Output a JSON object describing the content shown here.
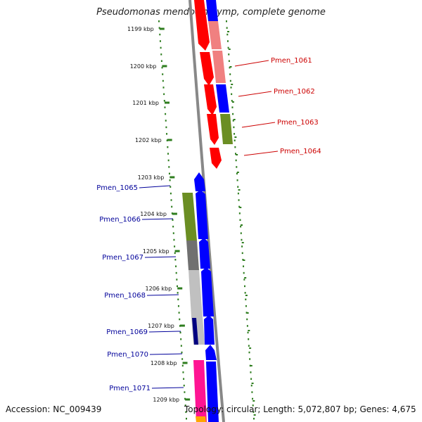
{
  "title": "Pseudomonas mendocina ymp, complete genome",
  "footer": {
    "accession": "Accession: NC_009439",
    "topology": "Topology: circular; Length: 5,072,807 bp; Genes: 4,675"
  },
  "colors": {
    "background": "#ffffff",
    "backbone": "#888888",
    "tick": "#2e7d1e",
    "label_right": "#cc0000",
    "label_left": "#00009a",
    "red": "#ff0000",
    "light_red": "#f08080",
    "blue": "#0000ff",
    "olive": "#6b8e23",
    "dark_gray": "#707070",
    "light_gray": "#c0c0c0",
    "navy": "#000080",
    "pink": "#ff1493",
    "orange": "#ffa500"
  },
  "axis": {
    "unit": "kbp",
    "ticks": [
      {
        "kbp": 1199,
        "label": "1199 kbp"
      },
      {
        "kbp": 1200,
        "label": "1200 kbp"
      },
      {
        "kbp": 1201,
        "label": "1201 kbp"
      },
      {
        "kbp": 1202,
        "label": "1202 kbp"
      },
      {
        "kbp": 1203,
        "label": "1203 kbp"
      },
      {
        "kbp": 1204,
        "label": "1204 kbp"
      },
      {
        "kbp": 1205,
        "label": "1205 kbp"
      },
      {
        "kbp": 1206,
        "label": "1206 kbp"
      },
      {
        "kbp": 1207,
        "label": "1207 kbp"
      },
      {
        "kbp": 1208,
        "label": "1208 kbp"
      },
      {
        "kbp": 1209,
        "label": "1209 kbp"
      }
    ]
  },
  "gene_labels": [
    {
      "name": "Pmen_1061",
      "side": "right"
    },
    {
      "name": "Pmen_1062",
      "side": "right"
    },
    {
      "name": "Pmen_1063",
      "side": "right"
    },
    {
      "name": "Pmen_1064",
      "side": "right"
    },
    {
      "name": "Pmen_1065",
      "side": "left"
    },
    {
      "name": "Pmen_1066",
      "side": "left"
    },
    {
      "name": "Pmen_1067",
      "side": "left"
    },
    {
      "name": "Pmen_1068",
      "side": "left"
    },
    {
      "name": "Pmen_1069",
      "side": "left"
    },
    {
      "name": "Pmen_1070",
      "side": "left"
    },
    {
      "name": "Pmen_1071",
      "side": "left"
    }
  ]
}
